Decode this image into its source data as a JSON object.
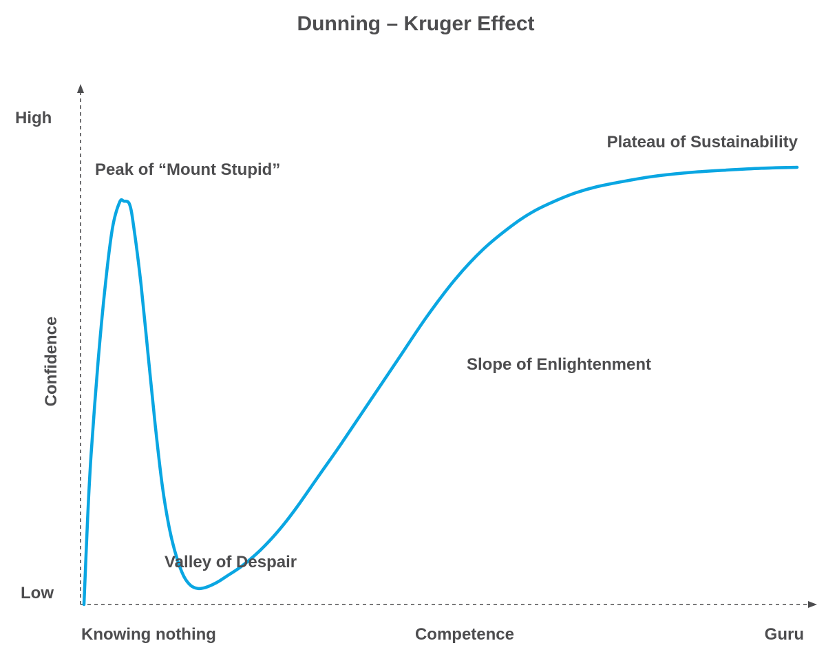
{
  "chart_data": {
    "type": "line",
    "title": "Dunning – Kruger Effect",
    "xlabel": "Competence",
    "ylabel": "Confidence",
    "x_tick_labels": {
      "start": "Knowing nothing",
      "end": "Guru"
    },
    "y_tick_labels": {
      "low": "Low",
      "high": "High"
    },
    "xlim": [
      0,
      100
    ],
    "ylim": [
      0,
      100
    ],
    "grid": false,
    "legend": "none",
    "line_color": "#0aa6e2",
    "series": [
      {
        "x": [
          0,
          0.5,
          1,
          2,
          3,
          4,
          5,
          5.6,
          6.4,
          7,
          8,
          9,
          10,
          11,
          12,
          13,
          14,
          15,
          16,
          17,
          18,
          19,
          20,
          22,
          24,
          26,
          28,
          30,
          33,
          36,
          40,
          44,
          48,
          52,
          56,
          60,
          63,
          66,
          69,
          72,
          76,
          80,
          85,
          90,
          95,
          100
        ],
        "y": [
          0,
          18,
          32,
          52,
          68,
          80,
          85.5,
          85.7,
          85,
          80,
          68,
          53,
          38,
          25,
          16,
          10,
          6,
          4,
          3.4,
          3.6,
          4.2,
          5,
          6,
          8,
          10.5,
          13.5,
          17,
          21,
          27.5,
          34,
          43,
          52,
          61,
          69,
          75.5,
          80.5,
          83.5,
          85.7,
          87.5,
          88.8,
          90,
          91,
          91.8,
          92.3,
          92.7,
          92.9
        ]
      }
    ],
    "annotations": [
      {
        "text": "Peak of “Mount Stupid”",
        "x": 6,
        "y": 85.7
      },
      {
        "text": "Valley of Despair",
        "x": 17,
        "y": 3.5
      },
      {
        "text": "Slope of Enlightenment",
        "x": 54,
        "y": 51
      },
      {
        "text": "Plateau of Sustainability",
        "x": 100,
        "y": 92.9
      }
    ]
  }
}
